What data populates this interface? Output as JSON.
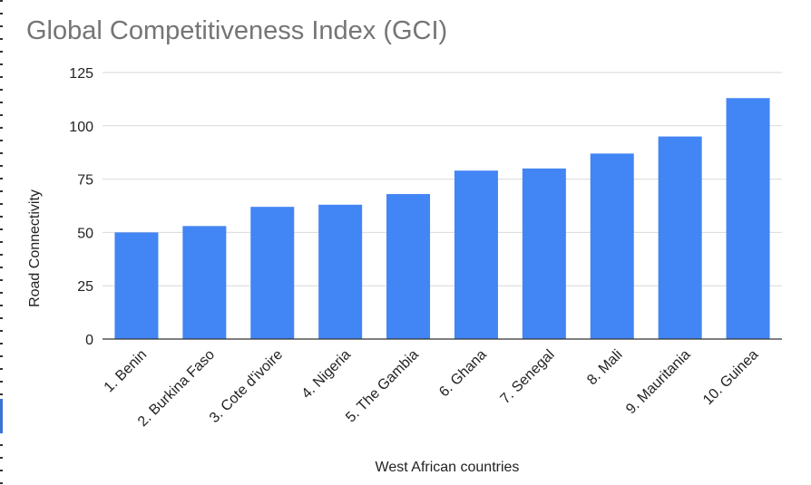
{
  "chart_data": {
    "type": "bar",
    "title": "Global Competitiveness Index (GCI)",
    "xlabel": "West African countries",
    "ylabel": "Road Connectivity",
    "categories": [
      "1. Benin",
      "2. Burkina Faso",
      "3. Cote d'ivoire",
      "4. Nigeria",
      "5. The Gambia",
      "6. Ghana",
      "7. Senegal",
      "8. Mali",
      "9. Mauritania",
      "10. Guinea"
    ],
    "values": [
      50,
      53,
      62,
      63,
      68,
      79,
      80,
      87,
      95,
      113
    ],
    "ylim": [
      0,
      125
    ],
    "yticks": [
      "0",
      "25",
      "50",
      "75",
      "100",
      "125"
    ],
    "grid": true,
    "legend": "none",
    "bar_color": "#4285f4"
  }
}
